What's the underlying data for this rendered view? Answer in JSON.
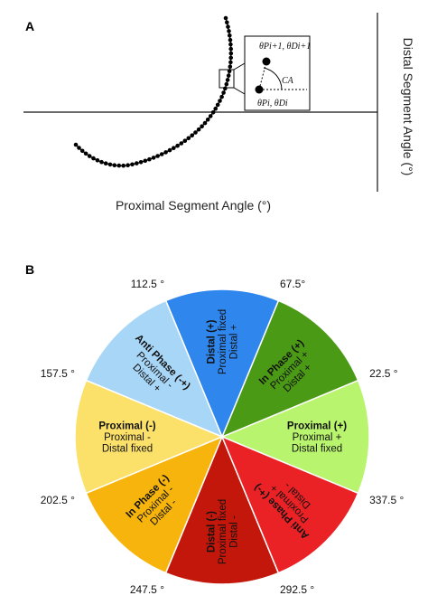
{
  "panel_a": {
    "label": "A",
    "x_axis_title": "Proximal Segment Angle (°)",
    "y_axis_title": "Distal Segment Angle (°)",
    "inset": {
      "label_top": "θPi+1, θDi+1",
      "label_bottom": "θPi, θDi",
      "angle_label": "CA"
    }
  },
  "panel_b": {
    "label": "B",
    "sectors": [
      {
        "title": "Proximal (+)",
        "lines": [
          "Proximal +",
          "Distal fixed"
        ],
        "color": "#b9f46e",
        "center_angle": 0
      },
      {
        "title": "In Phase (+)",
        "lines": [
          "Proximal +",
          "Distal +"
        ],
        "color": "#4b9a16",
        "center_angle": 45
      },
      {
        "title": "Distal (+)",
        "lines": [
          "Proximal fixed",
          "Distal +"
        ],
        "color": "#2f86ec",
        "center_angle": 90
      },
      {
        "title": "Anti Phase (-+)",
        "lines": [
          "Proximal -",
          "Distal +"
        ],
        "color": "#a8d6f7",
        "center_angle": 135
      },
      {
        "title": "Proximal (-)",
        "lines": [
          "Proximal -",
          "Distal fixed"
        ],
        "color": "#fbe06a",
        "center_angle": 180
      },
      {
        "title": "In Phase (-)",
        "lines": [
          "Proximal -",
          "Distal -"
        ],
        "color": "#f6b40c",
        "center_angle": 225
      },
      {
        "title": "Distal (-)",
        "lines": [
          "Proximal fixed",
          "Distal -"
        ],
        "color": "#c3170b",
        "center_angle": 270
      },
      {
        "title": "Anti Phase (+-)",
        "lines": [
          "Proximal +",
          "Distal -"
        ],
        "color": "#ea2225",
        "center_angle": 315
      }
    ],
    "boundary_labels": [
      {
        "text": "22.5 °",
        "angle": 22.5
      },
      {
        "text": "67.5°",
        "angle": 67.5
      },
      {
        "text": "112.5 °",
        "angle": 112.5
      },
      {
        "text": "157.5 °",
        "angle": 157.5
      },
      {
        "text": "202.5 °",
        "angle": 202.5
      },
      {
        "text": "247.5 °",
        "angle": 247.5
      },
      {
        "text": "292.5 °",
        "angle": 292.5
      },
      {
        "text": "337.5 °",
        "angle": 337.5
      }
    ]
  }
}
